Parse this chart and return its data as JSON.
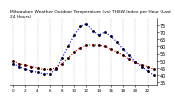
{
  "title": "Milwaukee Weather Outdoor Temperature (vs) THSW Index per Hour (Last 24 Hours)",
  "hours": [
    0,
    1,
    2,
    3,
    4,
    5,
    6,
    7,
    8,
    9,
    10,
    11,
    12,
    13,
    14,
    15,
    16,
    17,
    18,
    19,
    20,
    21,
    22,
    23
  ],
  "temp": [
    50,
    48,
    47,
    46,
    45,
    44,
    44,
    45,
    48,
    52,
    56,
    59,
    61,
    61,
    61,
    60,
    58,
    56,
    54,
    51,
    49,
    47,
    46,
    44
  ],
  "thsw": [
    48,
    46,
    44,
    43,
    42,
    41,
    41,
    44,
    52,
    60,
    68,
    74,
    76,
    71,
    68,
    70,
    67,
    63,
    58,
    54,
    49,
    46,
    43,
    40
  ],
  "temp_color": "#dd0000",
  "thsw_color": "#0000dd",
  "bg_color": "#ffffff",
  "plot_bg": "#f8f8f8",
  "grid_color": "#999999",
  "ylim_min": 33,
  "ylim_max": 80,
  "yticks": [
    35,
    40,
    45,
    50,
    55,
    60,
    65,
    70,
    75
  ],
  "ylabel_fontsize": 3.5,
  "title_fontsize": 3.2,
  "line_width": 0.8,
  "marker_size": 1.5
}
